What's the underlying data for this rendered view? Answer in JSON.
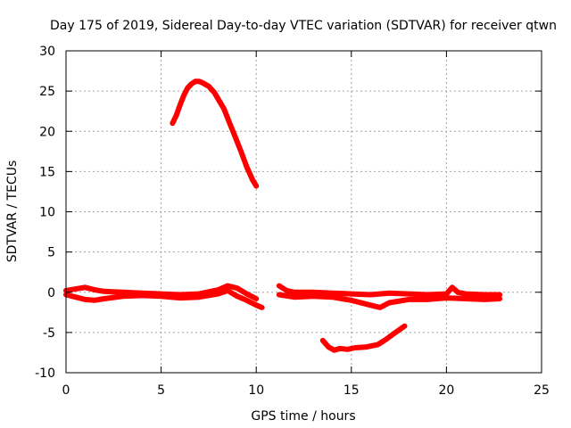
{
  "chart_data": {
    "type": "line",
    "title": "Day 175 of 2019, Sidereal Day-to-day VTEC variation (SDTVAR) for receiver qtwn",
    "xlabel": "GPS time / hours",
    "ylabel": "SDTVAR / TECUs",
    "xlim": [
      0,
      25
    ],
    "ylim": [
      -10,
      30
    ],
    "xticks": [
      "0",
      "5",
      "10",
      "15",
      "20",
      "25"
    ],
    "yticks": [
      "-10",
      "-5",
      "0",
      "5",
      "10",
      "15",
      "20",
      "25",
      "30"
    ],
    "xtick_values": [
      0,
      5,
      10,
      15,
      20,
      25
    ],
    "ytick_values": [
      -10,
      -5,
      0,
      5,
      10,
      15,
      20,
      25,
      30
    ],
    "grid": true,
    "color": "#ff0000",
    "series": [
      {
        "name": "band-upper-early",
        "x": [
          0.0,
          0.5,
          1.0,
          1.5,
          2.0,
          3.0,
          4.0,
          5.0,
          6.0,
          7.0,
          8.0,
          8.5,
          9.0,
          9.5,
          10.0
        ],
        "y": [
          0.2,
          0.4,
          0.6,
          0.3,
          0.1,
          0.0,
          -0.1,
          -0.2,
          -0.3,
          -0.2,
          0.3,
          0.8,
          0.5,
          -0.2,
          -0.8
        ]
      },
      {
        "name": "band-lower-early",
        "x": [
          0.0,
          0.5,
          1.0,
          1.5,
          2.0,
          3.0,
          4.0,
          5.0,
          6.0,
          7.0,
          8.0,
          8.5,
          9.0,
          9.5,
          10.0,
          10.3
        ],
        "y": [
          -0.3,
          -0.6,
          -0.9,
          -1.0,
          -0.8,
          -0.5,
          -0.4,
          -0.5,
          -0.7,
          -0.6,
          -0.2,
          0.2,
          -0.5,
          -1.0,
          -1.6,
          -1.9
        ]
      },
      {
        "name": "hump",
        "x": [
          5.6,
          5.8,
          6.0,
          6.2,
          6.4,
          6.6,
          6.8,
          7.0,
          7.2,
          7.5,
          7.8,
          8.0,
          8.3,
          8.6,
          8.9,
          9.2,
          9.5,
          9.8,
          10.0
        ],
        "y": [
          21.0,
          22.0,
          23.3,
          24.5,
          25.4,
          25.9,
          26.2,
          26.2,
          26.0,
          25.6,
          24.8,
          24.0,
          22.8,
          21.0,
          19.3,
          17.5,
          15.6,
          14.0,
          13.2
        ]
      },
      {
        "name": "band-upper-late",
        "x": [
          11.2,
          11.6,
          12.0,
          13.0,
          14.0,
          15.0,
          16.0,
          17.0,
          18.0,
          19.0,
          20.0,
          20.3,
          20.6,
          21.0,
          22.0,
          22.8
        ],
        "y": [
          0.8,
          0.2,
          0.0,
          0.0,
          -0.1,
          -0.2,
          -0.3,
          -0.1,
          -0.2,
          -0.3,
          -0.2,
          0.6,
          0.0,
          -0.2,
          -0.3,
          -0.3
        ]
      },
      {
        "name": "band-lower-late",
        "x": [
          11.2,
          12.0,
          13.0,
          14.0,
          14.5,
          15.0,
          16.0,
          16.5,
          17.0,
          18.0,
          19.0,
          20.0,
          21.0,
          22.0,
          22.8
        ],
        "y": [
          -0.3,
          -0.6,
          -0.5,
          -0.6,
          -0.8,
          -1.0,
          -1.6,
          -1.9,
          -1.3,
          -0.9,
          -0.9,
          -0.7,
          -0.8,
          -0.9,
          -0.8
        ]
      },
      {
        "name": "dip",
        "x": [
          13.5,
          13.8,
          14.1,
          14.4,
          14.8,
          15.2,
          15.8,
          16.4,
          16.8,
          17.2,
          17.5,
          17.8
        ],
        "y": [
          -6.0,
          -6.8,
          -7.2,
          -7.0,
          -7.1,
          -6.9,
          -6.8,
          -6.5,
          -5.9,
          -5.2,
          -4.7,
          -4.2
        ]
      }
    ]
  }
}
